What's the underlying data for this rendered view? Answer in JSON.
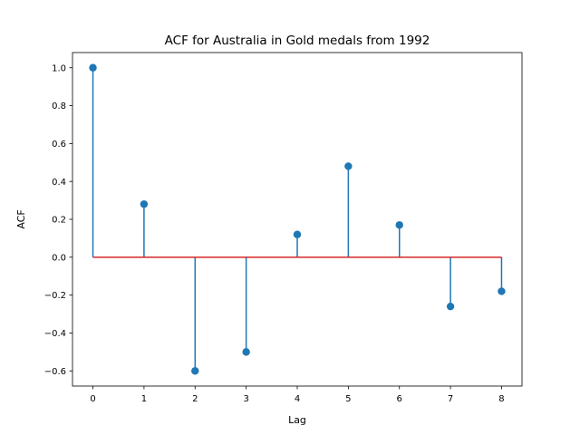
{
  "chart_data": {
    "type": "stem",
    "title": "ACF for Australia in Gold medals from 1992",
    "xlabel": "Lag",
    "ylabel": "ACF",
    "x": [
      0,
      1,
      2,
      3,
      4,
      5,
      6,
      7,
      8
    ],
    "values": [
      1.0,
      0.28,
      -0.6,
      -0.5,
      0.12,
      0.48,
      0.17,
      -0.26,
      -0.18
    ],
    "xlim": [
      -0.4,
      8.4
    ],
    "ylim": [
      -0.68,
      1.08
    ],
    "xticks": [
      "0",
      "1",
      "2",
      "3",
      "4",
      "5",
      "6",
      "7",
      "8"
    ],
    "yticks": [
      "−0.6",
      "−0.4",
      "−0.2",
      "0.0",
      "0.2",
      "0.4",
      "0.6",
      "0.8",
      "1.0"
    ],
    "ytick_values": [
      -0.6,
      -0.4,
      -0.2,
      0.0,
      0.2,
      0.4,
      0.6,
      0.8,
      1.0
    ],
    "colors": {
      "stem": "#1f77b4",
      "baseline": "#d62728"
    },
    "grid": false,
    "legend": false
  }
}
